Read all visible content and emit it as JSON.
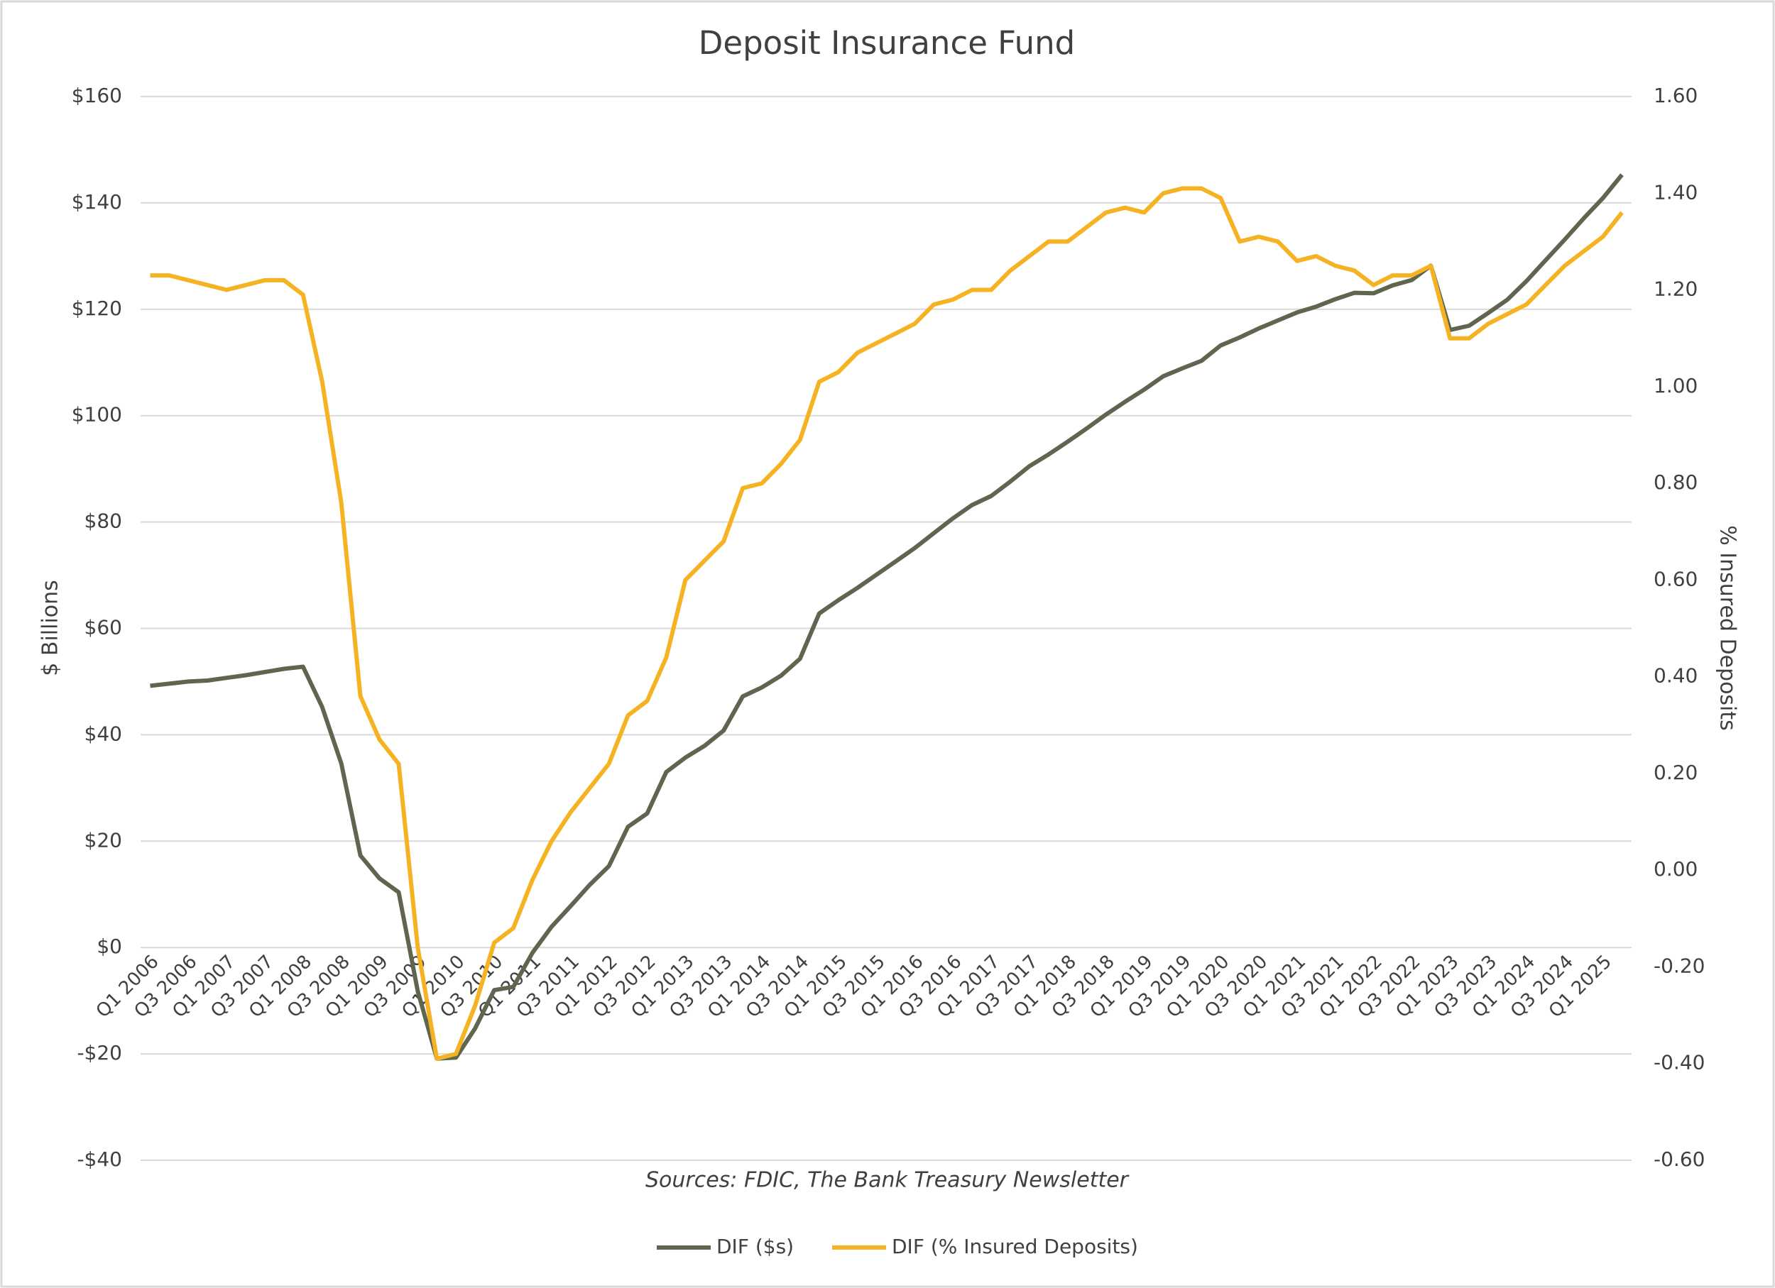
{
  "chart_data": {
    "type": "line",
    "title": "Deposit Insurance Fund",
    "y_label": "$ Billions",
    "y2_label": "% Insured Deposits",
    "source": "Sources: FDIC, The Bank Treasury Newsletter",
    "categories": [
      "Q1 2006",
      null,
      "Q3 2006",
      null,
      "Q1 2007",
      null,
      "Q3 2007",
      null,
      "Q1 2008",
      null,
      "Q3 2008",
      null,
      "Q1 2009",
      null,
      "Q3 2009",
      null,
      "Q1 2010",
      null,
      "Q3 2010",
      null,
      "Q1 2011",
      null,
      "Q3 2011",
      null,
      "Q1 2012",
      null,
      "Q3 2012",
      null,
      "Q1 2013",
      null,
      "Q3 2013",
      null,
      "Q1 2014",
      null,
      "Q3 2014",
      null,
      "Q1 2015",
      null,
      "Q3 2015",
      null,
      "Q1 2016",
      null,
      "Q3 2016",
      null,
      "Q1 2017",
      null,
      "Q3 2017",
      null,
      "Q1 2018",
      null,
      "Q3 2018",
      null,
      "Q1 2019",
      null,
      "Q3 2019",
      null,
      "Q1 2020",
      null,
      "Q3 2020",
      null,
      "Q1 2021",
      null,
      "Q3 2021",
      null,
      "Q1 2022",
      null,
      "Q3 2022",
      null,
      "Q1 2023",
      null,
      "Q3 2023",
      null,
      "Q1 2024",
      null,
      "Q3 2024",
      null,
      "Q1 2025",
      null
    ],
    "series": [
      {
        "name": "DIF ($s)",
        "color": "#5f6650",
        "values": [
          49.2,
          49.6,
          50.0,
          50.2,
          50.7,
          51.2,
          51.8,
          52.4,
          52.8,
          45.2,
          34.6,
          17.3,
          13.0,
          10.4,
          -8.2,
          -20.9,
          -20.7,
          -15.2,
          -8.0,
          -7.4,
          -1.0,
          3.9,
          7.8,
          11.8,
          15.3,
          22.7,
          25.2,
          33.0,
          35.7,
          37.9,
          40.8,
          47.2,
          48.9,
          51.1,
          54.3,
          62.8,
          65.3,
          67.6,
          70.1,
          72.6,
          75.1,
          77.9,
          80.7,
          83.2,
          84.9,
          87.6,
          90.5,
          92.7,
          95.1,
          97.6,
          100.2,
          102.6,
          104.9,
          107.4,
          108.9,
          110.3,
          113.2,
          114.7,
          116.4,
          117.9,
          119.4,
          120.5,
          121.9,
          123.1,
          123.0,
          124.5,
          125.5,
          128.2,
          116.1,
          116.9,
          119.3,
          121.8,
          125.3,
          129.2,
          133.1,
          137.1,
          140.9,
          145.3
        ]
      },
      {
        "name": "DIF (% Insured Deposits)",
        "color": "#f5b324",
        "axis": "y2",
        "values": [
          1.23,
          1.23,
          1.22,
          1.21,
          1.2,
          1.21,
          1.22,
          1.22,
          1.19,
          1.01,
          0.76,
          0.36,
          0.27,
          0.22,
          -0.16,
          -0.39,
          -0.38,
          -0.28,
          -0.15,
          -0.12,
          -0.02,
          0.06,
          0.12,
          0.17,
          0.22,
          0.32,
          0.35,
          0.44,
          0.6,
          0.64,
          0.68,
          0.79,
          0.8,
          0.84,
          0.89,
          1.01,
          1.03,
          1.07,
          1.09,
          1.11,
          1.13,
          1.17,
          1.18,
          1.2,
          1.2,
          1.24,
          1.27,
          1.3,
          1.3,
          1.33,
          1.36,
          1.37,
          1.36,
          1.4,
          1.41,
          1.41,
          1.39,
          1.3,
          1.31,
          1.3,
          1.26,
          1.27,
          1.25,
          1.24,
          1.21,
          1.23,
          1.23,
          1.25,
          1.1,
          1.1,
          1.13,
          1.15,
          1.17,
          1.21,
          1.25,
          1.28,
          1.31,
          1.36
        ]
      }
    ],
    "ylim": [
      -40,
      160
    ],
    "yticks": [
      {
        "value": -40,
        "label": "-$40"
      },
      {
        "value": -20,
        "label": "-$20"
      },
      {
        "value": 0,
        "label": "$0"
      },
      {
        "value": 20,
        "label": "$20"
      },
      {
        "value": 40,
        "label": "$40"
      },
      {
        "value": 60,
        "label": "$60"
      },
      {
        "value": 80,
        "label": "$80"
      },
      {
        "value": 100,
        "label": "$100"
      },
      {
        "value": 120,
        "label": "$120"
      },
      {
        "value": 140,
        "label": "$140"
      },
      {
        "value": 160,
        "label": "$160"
      }
    ],
    "y2lim": [
      -0.6,
      1.6
    ],
    "y2ticks": [
      {
        "value": -0.6,
        "label": "-0.60"
      },
      {
        "value": -0.4,
        "label": "-0.40"
      },
      {
        "value": -0.2,
        "label": "-0.20"
      },
      {
        "value": 0,
        "label": "0.00"
      },
      {
        "value": 0.2,
        "label": "0.20"
      },
      {
        "value": 0.4,
        "label": "0.40"
      },
      {
        "value": 0.6,
        "label": "0.60"
      },
      {
        "value": 0.8,
        "label": "0.80"
      },
      {
        "value": 1.0,
        "label": "1.00"
      },
      {
        "value": 1.2,
        "label": "1.20"
      },
      {
        "value": 1.4,
        "label": "1.40"
      },
      {
        "value": 1.6,
        "label": "1.60"
      }
    ],
    "grid": true,
    "legend": "bottom"
  }
}
